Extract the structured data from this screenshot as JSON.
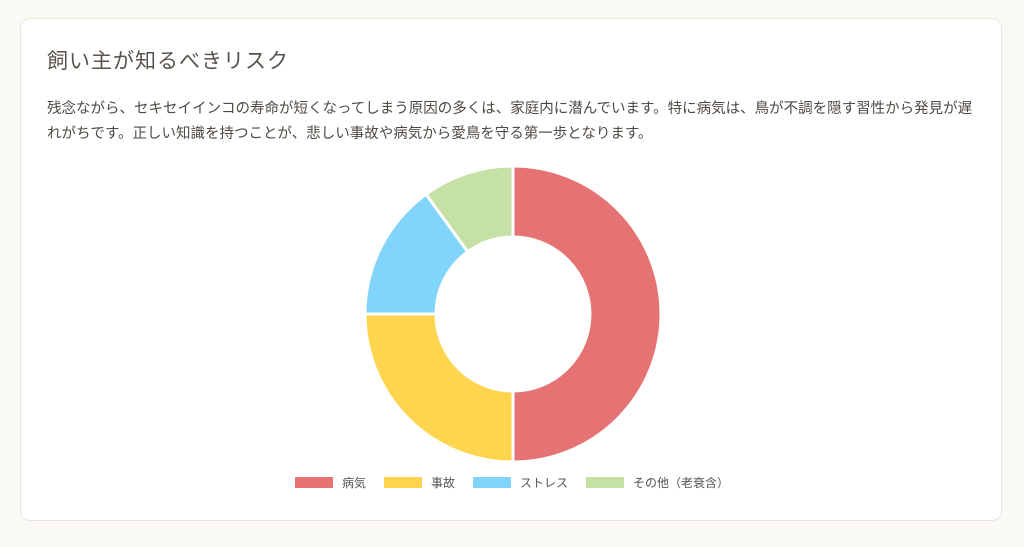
{
  "header": {
    "title": "飼い主が知るべきリスク",
    "description": "残念ながら、セキセイインコの寿命が短くなってしまう原因の多くは、家庭内に潜んでいます。特に病気は、鳥が不調を隠す習性から発見が遅れがちです。正しい知識を持つことが、悲しい事故や病気から愛鳥を守る第一歩となります。"
  },
  "chart_data": {
    "type": "pie",
    "donut": true,
    "title": "",
    "categories": [
      "病気",
      "事故",
      "ストレス",
      "その他（老衰含）"
    ],
    "values": [
      50,
      25,
      15,
      10
    ],
    "colors": [
      "#e57373",
      "#ffd54f",
      "#81d4fa",
      "#c5e1a5"
    ],
    "legend_position": "bottom"
  }
}
